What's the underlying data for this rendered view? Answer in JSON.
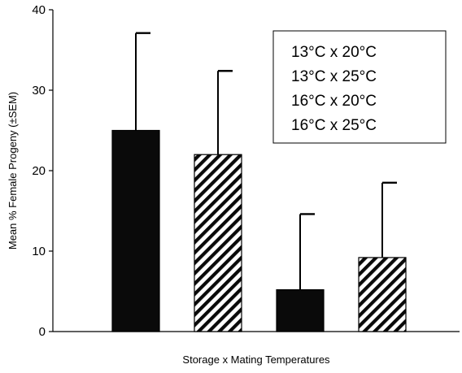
{
  "chart_data": {
    "type": "bar",
    "title": "",
    "xlabel": "Storage x Mating Temperatures",
    "ylabel": "Mean % Female Progeny (±SEM)",
    "ylim": [
      0,
      40
    ],
    "yticks": [
      0,
      10,
      20,
      30,
      40
    ],
    "categories": [
      "13°C x 20°C",
      "13°C x 25°C",
      "16°C x 20°C",
      "16°C x 25°C"
    ],
    "values": [
      25,
      22,
      5.2,
      9.2
    ],
    "error_upper": [
      12.1,
      10.4,
      9.4,
      9.3
    ],
    "fills": [
      "solid",
      "hatched",
      "solid",
      "hatched"
    ],
    "legend": {
      "placement": "top-right",
      "entries": [
        "13°C x 20°C",
        "13°C x 25°C",
        "16°C x 20°C",
        "16°C x 25°C"
      ]
    },
    "grid": false,
    "colors": {
      "bar": "#0a0a0a",
      "hatch_bg": "#ffffff",
      "axis": "#000000"
    }
  }
}
